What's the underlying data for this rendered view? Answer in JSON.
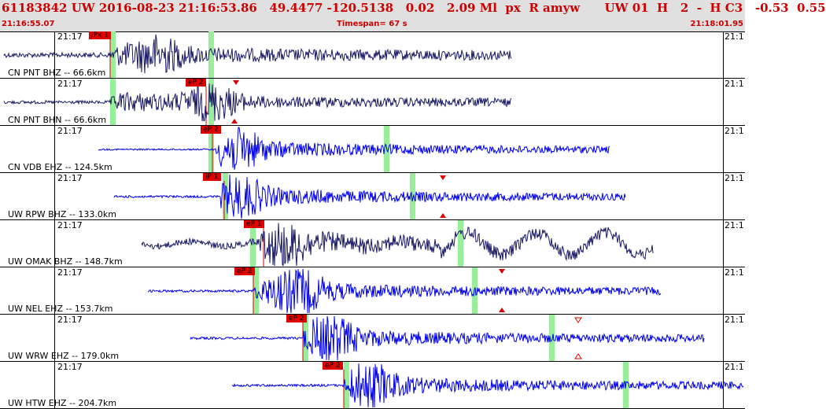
{
  "header": {
    "event_line": "61183842 UW 2016-08-23 21:16:53.86   49.4477 -120.5138   0.02   2.09 Ml  px  R amyw      UW 01  H   2  -  H C3   -0.53  0.55",
    "start_time": "21:16:55.07",
    "timespan": "Timespan=  67 s",
    "end_time": "21:18:01.95"
  },
  "colors": {
    "header_bg": "#e0e0e0",
    "header_text": "#cc0000",
    "trace_dark": "#1a1a66",
    "trace_blue": "#0000ee",
    "pick_flag": "#e00000",
    "green_marker": "#99ee99"
  },
  "panels": [
    {
      "minute": "21:17",
      "minute_right": "21:1",
      "label": "CN PNT BHZ -- 66.6km",
      "pick": "iPx 1",
      "trace_color": "dark"
    },
    {
      "minute": "21:17",
      "minute_right": "21:1",
      "label": "CN PNT BHN -- 66.6km",
      "pick": "eP 2",
      "trace_color": "dark"
    },
    {
      "minute": "21:17",
      "minute_right": "21:1",
      "label": "CN VDB EHZ -- 124.5km",
      "pick": "eP 2",
      "trace_color": "blue"
    },
    {
      "minute": "21:17",
      "minute_right": "21:1",
      "label": "UW RPW BHZ -- 133.0km",
      "pick": "iP 1",
      "trace_color": "blue"
    },
    {
      "minute": "21:17",
      "minute_right": "21:1",
      "label": "UW OMAK BHZ -- 148.7km",
      "pick": "eP 1",
      "trace_color": "dark"
    },
    {
      "minute": "21:17",
      "minute_right": "21:1",
      "label": "UW NEL EHZ -- 153.7km",
      "pick": "eP 2",
      "trace_color": "blue"
    },
    {
      "minute": "21:17",
      "minute_right": "21:1",
      "label": "UW WRW EHZ -- 179.0km",
      "pick": "eP 2",
      "trace_color": "blue"
    },
    {
      "minute": "21:17",
      "minute_right": "21:1",
      "label": "UW HTW EHZ -- 204.7km",
      "pick": "eP 2",
      "trace_color": "blue"
    }
  ]
}
